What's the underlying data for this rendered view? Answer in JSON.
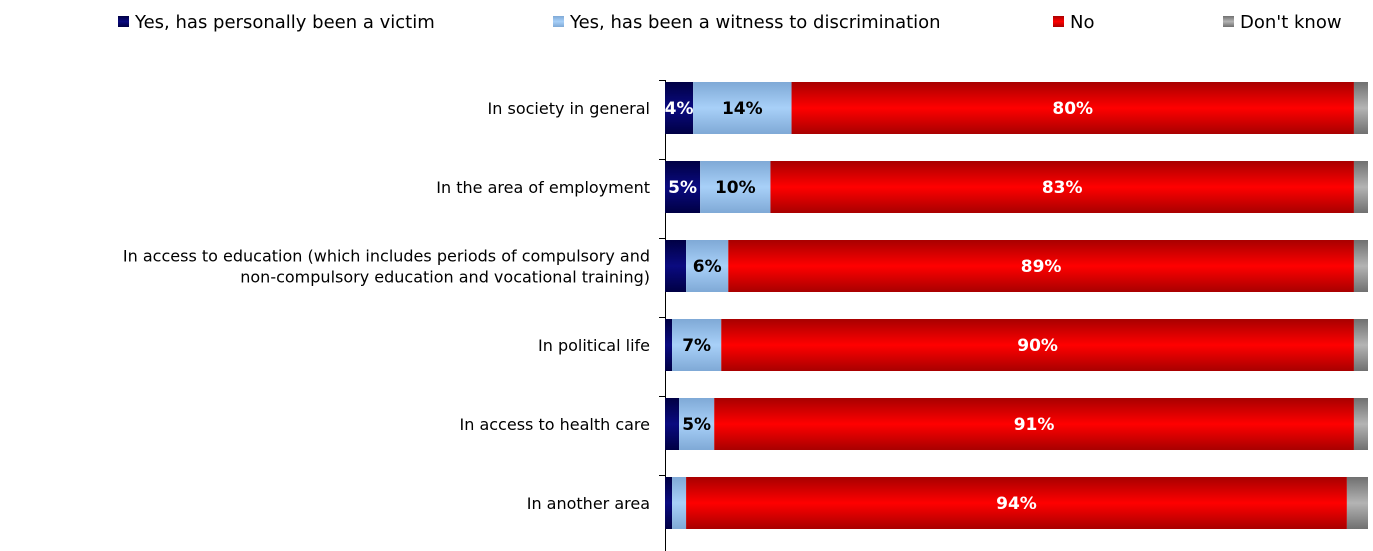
{
  "chart_data": {
    "type": "bar",
    "orientation": "horizontal",
    "stacked": true,
    "legend_position": "top",
    "grid": false,
    "xlim": [
      0,
      100
    ],
    "categories": [
      [
        "In society in general"
      ],
      [
        "In the area of employment"
      ],
      [
        "In access to education (which includes periods of compulsory and",
        "non-compulsory education and vocational training)"
      ],
      [
        "In political life"
      ],
      [
        "In access to health care"
      ],
      [
        "In another area"
      ]
    ],
    "series": [
      {
        "name": "Yes, has personally been a victim",
        "color": "#000066",
        "values": [
          4,
          5,
          3,
          1,
          2,
          1
        ],
        "labels": [
          "4%",
          "5%",
          "",
          "",
          "",
          ""
        ]
      },
      {
        "name": "Yes, has been a witness to discrimination",
        "color": "#99ccff",
        "values": [
          14,
          10,
          6,
          7,
          5,
          2
        ],
        "labels": [
          "14%",
          "10%",
          "6%",
          "7%",
          "5%",
          ""
        ]
      },
      {
        "name": "No",
        "color": "#ff0000",
        "values": [
          80,
          83,
          89,
          90,
          91,
          94
        ],
        "labels": [
          "80%",
          "83%",
          "89%",
          "90%",
          "91%",
          "94%"
        ]
      },
      {
        "name": "Don't know",
        "color": "#999999",
        "values": [
          2,
          2,
          2,
          2,
          2,
          3
        ],
        "labels": [
          "",
          "",
          "",
          "",
          "",
          ""
        ]
      }
    ]
  }
}
